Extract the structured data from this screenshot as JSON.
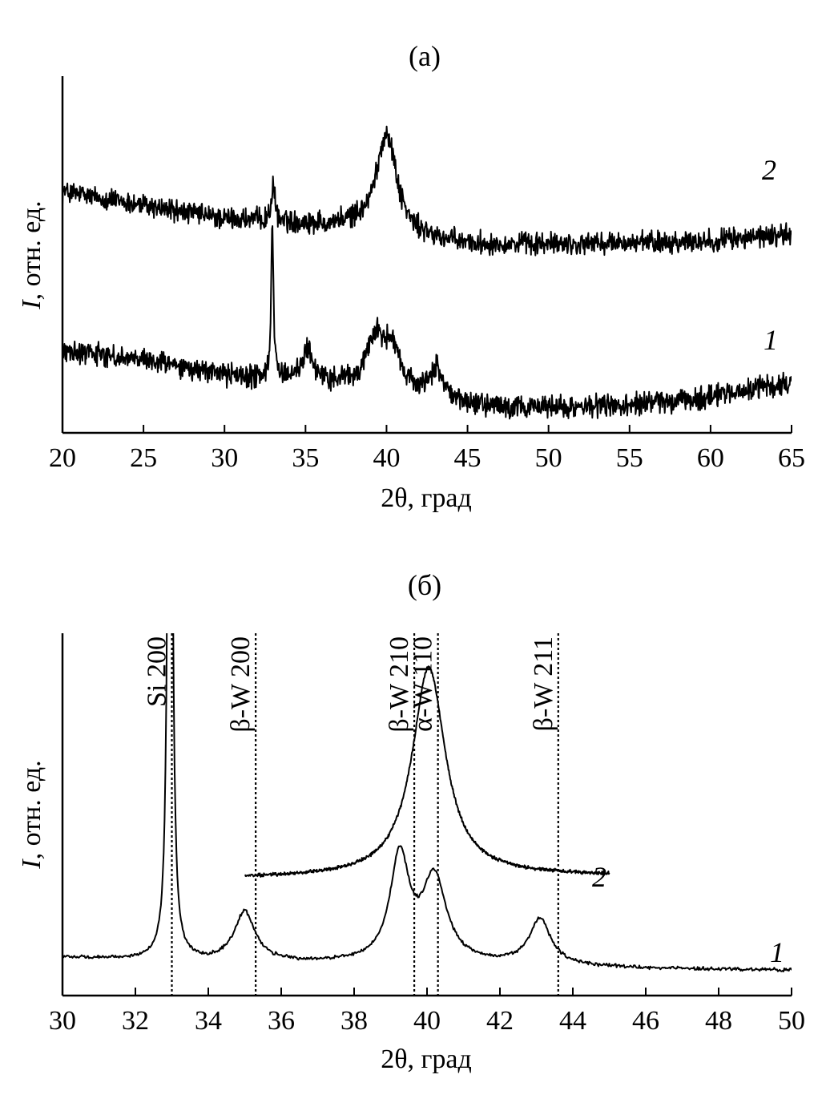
{
  "figure": {
    "colors": {
      "line": "#000000",
      "background": "#ffffff"
    }
  },
  "chart_data": [
    {
      "type": "line",
      "panel_label": "(a)",
      "xlabel": "2θ, град",
      "ylabel_italic": "I",
      "ylabel_rest": ", отн. ед.",
      "xlim": [
        20,
        65
      ],
      "x_ticks": [
        20,
        25,
        30,
        35,
        40,
        45,
        50,
        55,
        60,
        65
      ],
      "y_ticks": [],
      "grid": false,
      "noise": 0.55,
      "series": [
        {
          "name": "2",
          "base": [
            [
              20,
              9.6
            ],
            [
              30,
              8.5
            ],
            [
              38,
              8.2
            ],
            [
              42,
              7.7
            ],
            [
              45,
              7.5
            ],
            [
              50,
              7.5
            ],
            [
              55,
              7.55
            ],
            [
              60,
              7.65
            ],
            [
              65,
              7.9
            ]
          ],
          "peaks": [
            {
              "center": 33.0,
              "height": 1.3,
              "width": 0.15
            },
            {
              "center": 40.0,
              "height": 4.0,
              "width": 0.75
            }
          ]
        },
        {
          "name": "1",
          "base": [
            [
              20,
              3.3
            ],
            [
              26,
              2.8
            ],
            [
              30,
              2.3
            ],
            [
              36,
              2.0
            ],
            [
              42,
              1.6
            ],
            [
              45,
              1.1
            ],
            [
              50,
              1.0
            ],
            [
              55,
              1.1
            ],
            [
              60,
              1.4
            ],
            [
              65,
              2.0
            ]
          ],
          "peaks": [
            {
              "center": 32.95,
              "height": 6.1,
              "width": 0.09
            },
            {
              "center": 35.1,
              "height": 1.3,
              "width": 0.4
            },
            {
              "center": 39.3,
              "height": 1.9,
              "width": 0.6
            },
            {
              "center": 40.3,
              "height": 1.6,
              "width": 0.55
            },
            {
              "center": 43.1,
              "height": 1.2,
              "width": 0.45
            }
          ]
        }
      ]
    },
    {
      "type": "line",
      "panel_label": "(б)",
      "xlabel": "2θ, град",
      "ylabel_italic": "I",
      "ylabel_rest": ", отн. ед.",
      "xlim": [
        30,
        50
      ],
      "x_ticks": [
        30,
        32,
        34,
        36,
        38,
        40,
        42,
        44,
        46,
        48,
        50
      ],
      "y_ticks": [],
      "grid": false,
      "noise": 0.08,
      "reference_lines": [
        {
          "x": 33.0,
          "label": "Si 200"
        },
        {
          "x": 35.3,
          "label": "β-W 200"
        },
        {
          "x": 39.65,
          "label": "β-W 210"
        },
        {
          "x": 40.3,
          "label": "α-W 110"
        },
        {
          "x": 43.6,
          "label": "β-W 211"
        }
      ],
      "series": [
        {
          "name": "2",
          "xrange": [
            35.0,
            45.0
          ],
          "base": [
            [
              35.0,
              4.6
            ],
            [
              38.0,
              4.65
            ],
            [
              42.0,
              4.7
            ],
            [
              45.0,
              4.7
            ]
          ],
          "peaks": [
            {
              "center": 40.05,
              "height": 8.2,
              "width": 0.55
            }
          ]
        },
        {
          "name": "1",
          "xrange": [
            30.0,
            50.0
          ],
          "base": [
            [
              30.0,
              1.5
            ],
            [
              34.0,
              1.3
            ],
            [
              38.0,
              1.25
            ],
            [
              42.0,
              1.2
            ],
            [
              46.0,
              1.05
            ],
            [
              50.0,
              1.0
            ]
          ],
          "peaks": [
            {
              "center": 32.95,
              "height": 40,
              "width": 0.06
            },
            {
              "center": 35.0,
              "height": 1.95,
              "width": 0.35
            },
            {
              "center": 39.25,
              "height": 4.1,
              "width": 0.32
            },
            {
              "center": 40.2,
              "height": 3.3,
              "width": 0.4
            },
            {
              "center": 43.1,
              "height": 1.8,
              "width": 0.35
            }
          ]
        }
      ]
    }
  ]
}
